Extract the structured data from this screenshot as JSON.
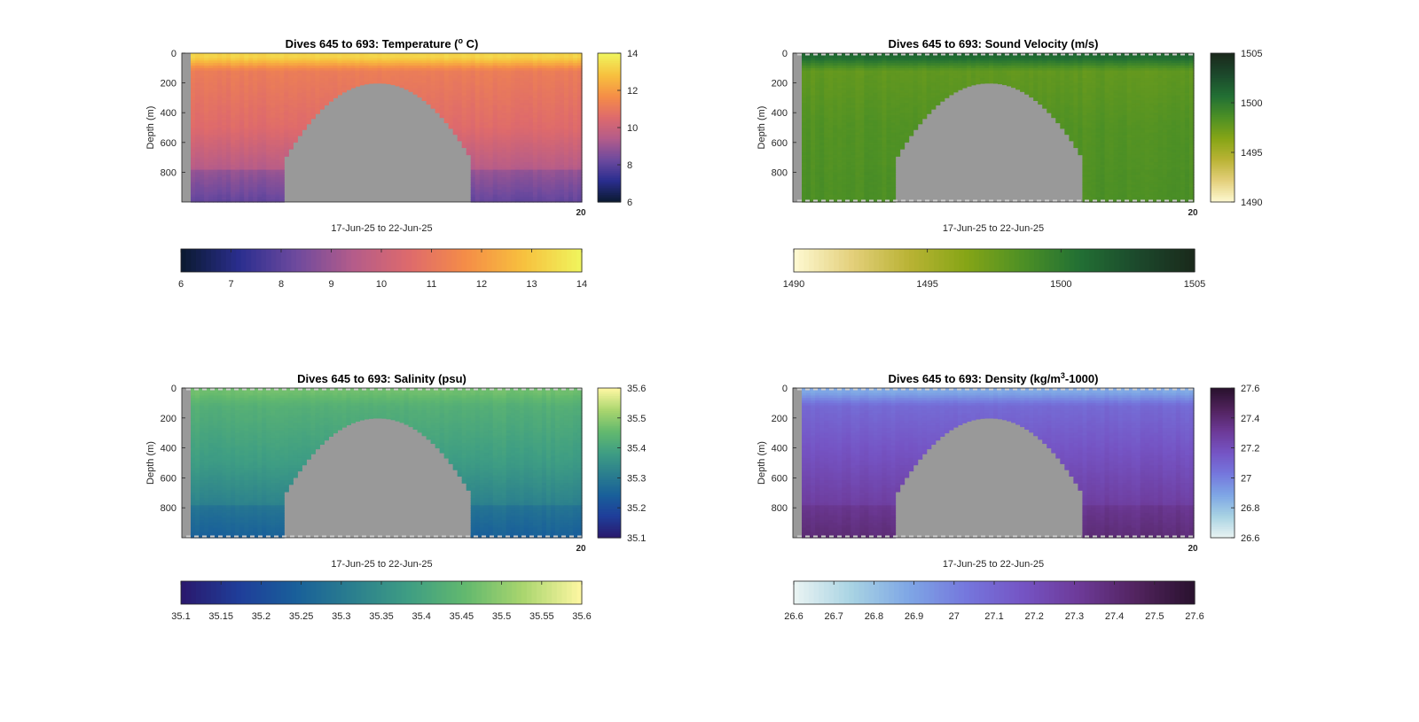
{
  "figure": {
    "background": "#ffffff",
    "land_color": "#999999"
  },
  "chart_data": [
    {
      "type": "heatmap",
      "title_prefix": "Dives 645 to 693: Temperature (",
      "title_sup": "o",
      "title_suffix": " C)",
      "xlabel": "17-Jun-25 to 22-Jun-25",
      "ylabel": "Depth (m)",
      "x_tick_label": "20",
      "y_ticks": [
        0,
        200,
        400,
        600,
        800
      ],
      "ylim": [
        0,
        1000
      ],
      "y_reversed": true,
      "clim": [
        6,
        14
      ],
      "colormap": "thermal",
      "colormap_stops": [
        "#0b1a33",
        "#2b2e8f",
        "#6e4a9e",
        "#b45c8a",
        "#de6a6c",
        "#f58d47",
        "#f7c03e",
        "#f0f35c"
      ],
      "cbar_right_ticks": [
        6,
        8,
        10,
        12,
        14
      ],
      "cbar_bottom_ticks": [
        6,
        7,
        8,
        9,
        10,
        11,
        12,
        13,
        14
      ],
      "profile": {
        "surface": 13.3,
        "thermocline": 11.2,
        "mid": 10.6,
        "deep": 8.6
      },
      "has_dashed_edges": false
    },
    {
      "type": "heatmap",
      "title_prefix": "Dives 645 to 693: Sound Velocity (m/s)",
      "title_sup": "",
      "title_suffix": "",
      "xlabel": "17-Jun-25 to 22-Jun-25",
      "ylabel": "Depth (m)",
      "x_tick_label": "20",
      "y_ticks": [
        0,
        200,
        400,
        600,
        800
      ],
      "ylim": [
        0,
        1000
      ],
      "y_reversed": true,
      "clim": [
        1490,
        1505
      ],
      "colormap": "speed",
      "colormap_stops": [
        "#fdf8cf",
        "#e3cf7a",
        "#b9b334",
        "#86a516",
        "#4d9025",
        "#227034",
        "#1c4a2c",
        "#1a2a1c"
      ],
      "cbar_right_ticks": [
        1490,
        1495,
        1500,
        1505
      ],
      "cbar_bottom_ticks": [
        1490,
        1495,
        1500,
        1505
      ],
      "profile": {
        "surface": 1501.0,
        "thermocline": 1497.8,
        "mid": 1498.4,
        "deep": 1498.6
      },
      "has_dashed_edges": true
    },
    {
      "type": "heatmap",
      "title_prefix": "Dives 645 to 693: Salinity (psu)",
      "title_sup": "",
      "title_suffix": "",
      "xlabel": "17-Jun-25 to 22-Jun-25",
      "ylabel": "Depth (m)",
      "x_tick_label": "20",
      "y_ticks": [
        0,
        200,
        400,
        600,
        800
      ],
      "ylim": [
        0,
        1000
      ],
      "y_reversed": true,
      "clim": [
        35.1,
        35.6
      ],
      "colormap": "haline",
      "colormap_stops": [
        "#2a1a6e",
        "#1f3e9a",
        "#19609a",
        "#2b7f8e",
        "#3f9e83",
        "#63b96e",
        "#a9d56e",
        "#fbf6a0"
      ],
      "cbar_right_ticks": [
        35.1,
        35.2,
        35.3,
        35.4,
        35.5,
        35.6
      ],
      "cbar_bottom_ticks": [
        35.1,
        35.15,
        35.2,
        35.25,
        35.3,
        35.35,
        35.4,
        35.45,
        35.5,
        35.55,
        35.6
      ],
      "profile": {
        "surface": 35.47,
        "thermocline": 35.43,
        "mid": 35.38,
        "deep": 35.27
      },
      "has_dashed_edges": true
    },
    {
      "type": "heatmap",
      "title_prefix": "Dives 645 to 693: Density (kg/m",
      "title_sup": "3",
      "title_suffix": "-1000)",
      "xlabel": "17-Jun-25 to 22-Jun-25",
      "ylabel": "Depth (m)",
      "x_tick_label": "20",
      "y_ticks": [
        0,
        200,
        400,
        600,
        800
      ],
      "ylim": [
        0,
        1000
      ],
      "y_reversed": true,
      "clim": [
        26.6,
        27.6
      ],
      "colormap": "dense",
      "colormap_stops": [
        "#e8f3f2",
        "#a7d2e3",
        "#7ea6e5",
        "#7577dd",
        "#7554c4",
        "#6d3a98",
        "#52245f",
        "#2b1230"
      ],
      "cbar_right_ticks": [
        26.6,
        26.8,
        27,
        27.2,
        27.4,
        27.6
      ],
      "cbar_bottom_ticks": [
        26.6,
        26.7,
        26.8,
        26.9,
        27,
        27.1,
        27.2,
        27.3,
        27.4,
        27.5,
        27.6
      ],
      "profile": {
        "surface": 26.88,
        "thermocline": 27.08,
        "mid": 27.2,
        "deep": 27.36
      },
      "has_dashed_edges": true
    }
  ]
}
